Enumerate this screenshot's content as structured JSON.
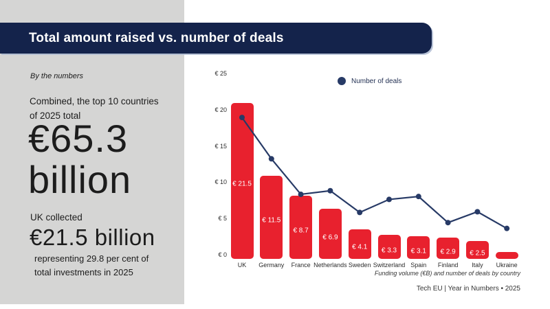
{
  "header": {
    "title": "Total amount raised vs. number of deals"
  },
  "sidebar": {
    "kicker": "By the numbers",
    "intro_line1": "Combined, the top 10 countries",
    "intro_line2": "of 2025 total",
    "big_value_line1": "€65.3",
    "big_value_line2": "billion",
    "uk_label": "UK collected",
    "uk_value": "€21.5 billion",
    "uk_note_line1": "representing 29.8 per cent of",
    "uk_note_line2": "total investments in 2025"
  },
  "chart": {
    "legend_label": "Number of deals",
    "caption": "Funding volume (€B) and number of deals by country",
    "footer": "Tech EU | Year in Numbers • 2025"
  },
  "colors": {
    "panel_gray": "#d5d5d4",
    "navy": "#14234b",
    "bar_red": "#e8212e",
    "line_navy": "#273a66",
    "text_dark": "#1c1c1c"
  },
  "chart_data": {
    "type": "combo (bar + line)",
    "title": "Total amount raised vs. number of deals",
    "caption": "Funding volume (€B) and number of deals by country",
    "categories": [
      "UK",
      "Germany",
      "France",
      "Netherlands",
      "Sweden",
      "Switzerland",
      "Spain",
      "Finland",
      "Italy",
      "Ukraine"
    ],
    "series": [
      {
        "name": "Funding volume (€B)",
        "type": "bar",
        "color": "#e8212e",
        "values": [
          21.5,
          11.5,
          8.7,
          6.9,
          4.1,
          3.3,
          3.1,
          2.9,
          2.5,
          0.9
        ],
        "data_labels": [
          "€ 21.5",
          "€ 11.5",
          "€ 8.7",
          "€ 6.9",
          "€ 4.1",
          "€ 3.3",
          "€ 3.1",
          "€ 2.9",
          "€ 2.5",
          ""
        ]
      },
      {
        "name": "Number of deals",
        "type": "line",
        "color": "#273a66",
        "values": [
          19.5,
          13.8,
          8.9,
          9.4,
          6.4,
          8.2,
          8.6,
          5.0,
          6.5,
          4.2
        ],
        "note": "positions read off the € axis; actual deal counts are not labeled in the figure"
      }
    ],
    "y_axis": {
      "ticks": [
        "€ 0",
        "€ 5",
        "€ 10",
        "€ 15",
        "€ 20",
        "€ 25"
      ],
      "tick_values": [
        0,
        5,
        10,
        15,
        20,
        25
      ],
      "range": [
        0,
        25
      ]
    },
    "x_axis_label": "",
    "grid": false,
    "legend_position": "top-center"
  }
}
